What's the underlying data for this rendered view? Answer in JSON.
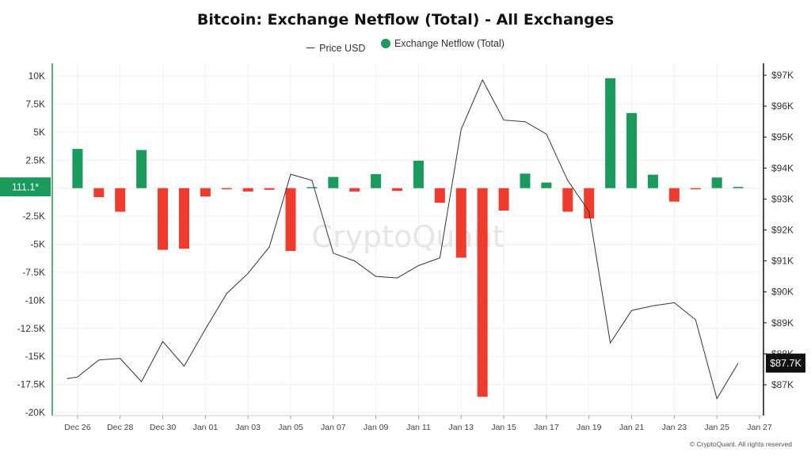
{
  "title": "Bitcoin: Exchange Netflow (Total) - All Exchanges",
  "legend": [
    {
      "label": "Price USD",
      "kind": "line",
      "color": "#333333"
    },
    {
      "label": "Exchange Netflow (Total)",
      "kind": "dot",
      "color": "#1a9a5c"
    }
  ],
  "watermark": "CryptoQuant",
  "footer": "© CryptoQuant. All rights reserved",
  "colors": {
    "positive": "#1a9a5c",
    "negative": "#f03c2e",
    "price_line": "#333333",
    "left_axis": "#1a9a5c",
    "right_axis": "#111111"
  },
  "chart_data": {
    "type": "bar",
    "title": "Bitcoin: Exchange Netflow (Total) - All Exchanges",
    "x_range": [
      "2024-12-25",
      "2025-01-27"
    ],
    "x_ticks": [
      "Dec 26",
      "Dec 28",
      "Dec 30",
      "Jan 01",
      "Jan 03",
      "Jan 05",
      "Jan 07",
      "Jan 09",
      "Jan 11",
      "Jan 13",
      "Jan 15",
      "Jan 17",
      "Jan 19",
      "Jan 21",
      "Jan 23",
      "Jan 25",
      "Jan 27"
    ],
    "left_axis": {
      "min": -20000,
      "max": 10000,
      "ticks": [
        "10K",
        "7.5K",
        "5K",
        "2.5K",
        "0",
        "-2.5K",
        "-5K",
        "-7.5K",
        "-10K",
        "-12.5K",
        "-15K",
        "-17.5K",
        "-20K"
      ]
    },
    "right_axis": {
      "min": 86000,
      "max": 97000,
      "ticks": [
        "$97K",
        "$96K",
        "$95K",
        "$94K",
        "$93K",
        "$92K",
        "$91K",
        "$90K",
        "$89K",
        "$88K",
        "$87K"
      ]
    },
    "series": [
      {
        "name": "Exchange Netflow (Total)",
        "type": "bar",
        "axis": "left",
        "points": [
          {
            "x": "2024-12-26",
            "y": 3500
          },
          {
            "x": "2024-12-27",
            "y": -800
          },
          {
            "x": "2024-12-28",
            "y": -2100
          },
          {
            "x": "2024-12-29",
            "y": 3400
          },
          {
            "x": "2024-12-30",
            "y": -5500
          },
          {
            "x": "2024-12-31",
            "y": -5400
          },
          {
            "x": "2025-01-01",
            "y": -750
          },
          {
            "x": "2025-01-02",
            "y": -50
          },
          {
            "x": "2025-01-03",
            "y": -300
          },
          {
            "x": "2025-01-04",
            "y": -150
          },
          {
            "x": "2025-01-05",
            "y": -5600
          },
          {
            "x": "2025-01-06",
            "y": 100
          },
          {
            "x": "2025-01-07",
            "y": 1000
          },
          {
            "x": "2025-01-08",
            "y": -300
          },
          {
            "x": "2025-01-09",
            "y": 1250
          },
          {
            "x": "2025-01-10",
            "y": -250
          },
          {
            "x": "2025-01-11",
            "y": 2450
          },
          {
            "x": "2025-01-12",
            "y": -1300
          },
          {
            "x": "2025-01-13",
            "y": -6200
          },
          {
            "x": "2025-01-14",
            "y": -18600
          },
          {
            "x": "2025-01-15",
            "y": -2000
          },
          {
            "x": "2025-01-16",
            "y": 1300
          },
          {
            "x": "2025-01-17",
            "y": 500
          },
          {
            "x": "2025-01-18",
            "y": -2100
          },
          {
            "x": "2025-01-19",
            "y": -2700
          },
          {
            "x": "2025-01-20",
            "y": 9800
          },
          {
            "x": "2025-01-21",
            "y": 6700
          },
          {
            "x": "2025-01-22",
            "y": 1200
          },
          {
            "x": "2025-01-23",
            "y": -1200
          },
          {
            "x": "2025-01-24",
            "y": -50
          },
          {
            "x": "2025-01-25",
            "y": 950
          },
          {
            "x": "2025-01-26",
            "y": 111.1
          }
        ]
      },
      {
        "name": "Price USD",
        "type": "line",
        "axis": "right",
        "points": [
          {
            "x": "2024-12-25.5",
            "y": 87200
          },
          {
            "x": "2024-12-26",
            "y": 87250
          },
          {
            "x": "2024-12-27",
            "y": 87800
          },
          {
            "x": "2024-12-28",
            "y": 87850
          },
          {
            "x": "2024-12-29",
            "y": 87100
          },
          {
            "x": "2024-12-30",
            "y": 88400
          },
          {
            "x": "2024-12-31",
            "y": 87600
          },
          {
            "x": "2025-01-01",
            "y": 88800
          },
          {
            "x": "2025-01-02",
            "y": 89950
          },
          {
            "x": "2025-01-03",
            "y": 90600
          },
          {
            "x": "2025-01-04",
            "y": 91450
          },
          {
            "x": "2025-01-05",
            "y": 93800
          },
          {
            "x": "2025-01-06",
            "y": 93600
          },
          {
            "x": "2025-01-07",
            "y": 91250
          },
          {
            "x": "2025-01-08",
            "y": 91000
          },
          {
            "x": "2025-01-09",
            "y": 90500
          },
          {
            "x": "2025-01-10",
            "y": 90450
          },
          {
            "x": "2025-01-11",
            "y": 90850
          },
          {
            "x": "2025-01-12",
            "y": 91100
          },
          {
            "x": "2025-01-13",
            "y": 95250
          },
          {
            "x": "2025-01-14",
            "y": 96850
          },
          {
            "x": "2025-01-15",
            "y": 95550
          },
          {
            "x": "2025-01-16",
            "y": 95500
          },
          {
            "x": "2025-01-17",
            "y": 95100
          },
          {
            "x": "2025-01-18",
            "y": 93600
          },
          {
            "x": "2025-01-19",
            "y": 92600
          },
          {
            "x": "2025-01-20",
            "y": 88350
          },
          {
            "x": "2025-01-21",
            "y": 89400
          },
          {
            "x": "2025-01-22",
            "y": 89550
          },
          {
            "x": "2025-01-23",
            "y": 89650
          },
          {
            "x": "2025-01-24",
            "y": 89100
          },
          {
            "x": "2025-01-25",
            "y": 86550
          },
          {
            "x": "2025-01-26",
            "y": 87700
          }
        ]
      }
    ],
    "last_values": {
      "netflow_label": "111.1*",
      "price_label": "$87.7K"
    },
    "grid": true,
    "legend_position": "top-center"
  }
}
